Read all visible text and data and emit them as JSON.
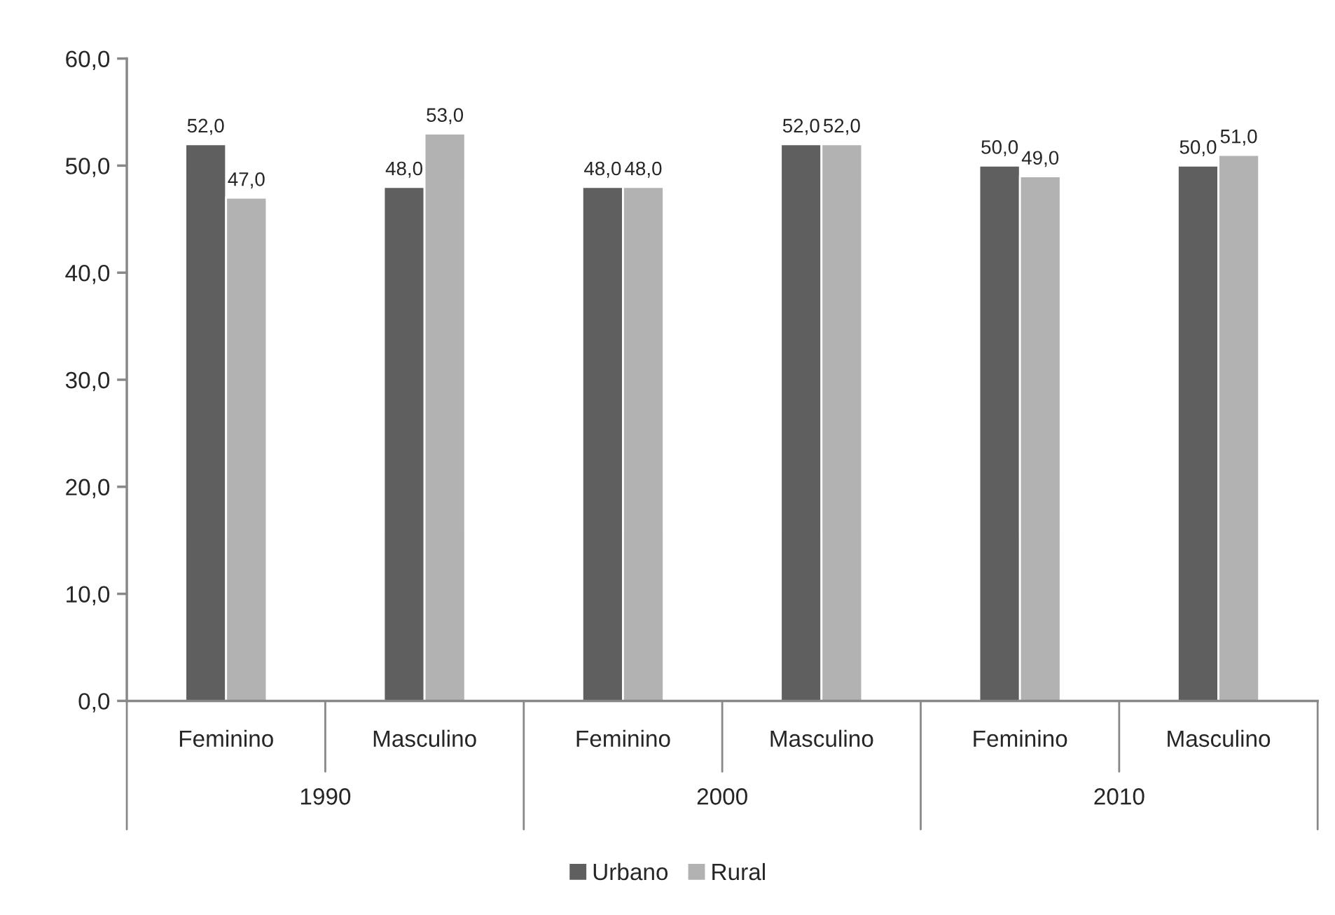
{
  "chart_data": {
    "type": "bar",
    "categories": [
      "Feminino",
      "Masculino",
      "Feminino",
      "Masculino",
      "Feminino",
      "Masculino"
    ],
    "annotations": [
      "1990",
      "2000",
      "2010"
    ],
    "series": [
      {
        "name": "Urbano",
        "color": "#5f5f5f",
        "values": [
          52.0,
          48.0,
          48.0,
          52.0,
          50.0,
          50.0
        ],
        "value_labels": [
          "52,0",
          "48,0",
          "48,0",
          "52,0",
          "50,0",
          "50,0"
        ]
      },
      {
        "name": "Rural",
        "color": "#b2b2b2",
        "values": [
          47.0,
          53.0,
          48.0,
          52.0,
          49.0,
          51.0
        ],
        "value_labels": [
          "47,0",
          "53,0",
          "48,0",
          "52,0",
          "49,0",
          "51,0"
        ]
      }
    ],
    "ylim": [
      0,
      60
    ],
    "yticks": [
      {
        "value": 0,
        "label": "0,0"
      },
      {
        "value": 10,
        "label": "10,0"
      },
      {
        "value": 20,
        "label": "20,0"
      },
      {
        "value": 30,
        "label": "30,0"
      },
      {
        "value": 40,
        "label": "40,0"
      },
      {
        "value": 50,
        "label": "50,0"
      },
      {
        "value": 60,
        "label": "60,0"
      }
    ],
    "grid": false,
    "legend": "bottom"
  }
}
